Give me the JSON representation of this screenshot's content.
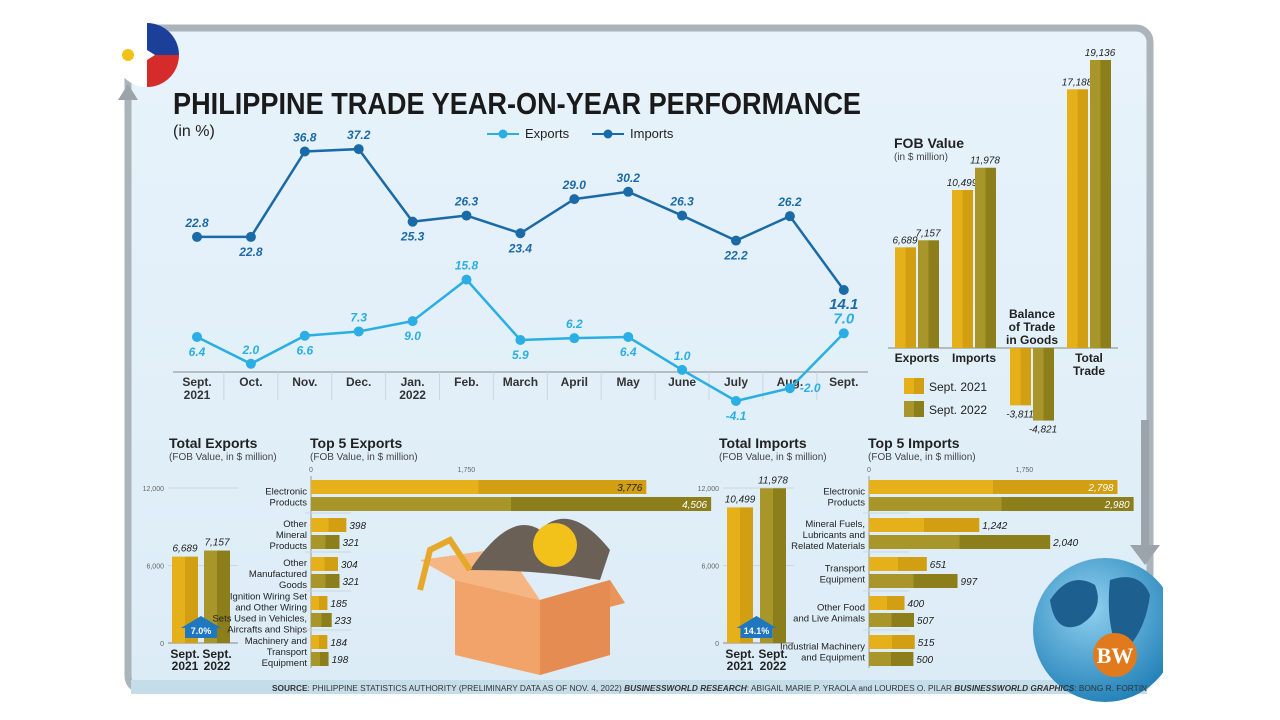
{
  "title": "PHILIPPINE TRADE YEAR-ON-YEAR PERFORMANCE",
  "colors": {
    "exports_line": "#2aaee4",
    "imports_line": "#1b6aa8",
    "sept2021": "#dca916",
    "sept2022": "#9d8c23",
    "panel": "#e4f1fa",
    "frame": "#a9b3b8"
  },
  "chart_data": [
    {
      "type": "line",
      "subtitle": "(in %)",
      "categories": [
        [
          "Sept.",
          "2021"
        ],
        [
          "Oct."
        ],
        [
          "Nov."
        ],
        [
          "Dec."
        ],
        [
          "Jan.",
          "2022"
        ],
        [
          "Feb."
        ],
        [
          "March"
        ],
        [
          "April"
        ],
        [
          "May"
        ],
        [
          "June"
        ],
        [
          "July"
        ],
        [
          "Aug."
        ],
        [
          "Sept."
        ]
      ],
      "series": [
        {
          "name": "Exports",
          "values": [
            6.4,
            2.0,
            6.6,
            7.3,
            9.0,
            15.8,
            5.9,
            6.2,
            6.4,
            1.0,
            -4.1,
            -2.0,
            7.0
          ]
        },
        {
          "name": "Imports",
          "values": [
            22.8,
            22.8,
            36.8,
            37.2,
            25.3,
            26.3,
            23.4,
            29.0,
            30.2,
            26.3,
            22.2,
            26.2,
            14.1
          ]
        }
      ],
      "legend": "top-center",
      "labels": [
        [
          "6.4",
          "2.0",
          "6.6",
          "7.3",
          "9.0",
          "15.8",
          "5.9",
          "6.2",
          "6.4",
          "1.0",
          "-4.1",
          "-2.0",
          "7.0"
        ],
        [
          "22.8",
          "22.8",
          "36.8",
          "37.2",
          "25.3",
          "26.3",
          "23.4",
          "29.0",
          "30.2",
          "26.3",
          "22.2",
          "26.2",
          "14.1"
        ]
      ]
    },
    {
      "type": "bar",
      "title": "FOB Value",
      "subtitle": "(in $ million)",
      "categories": [
        [
          "Exports"
        ],
        [
          "Imports"
        ],
        [
          "Balance",
          "of Trade",
          "in Goods"
        ],
        [
          "Total",
          "Trade"
        ]
      ],
      "series": [
        {
          "name": "Sept. 2021",
          "values": [
            6689,
            10499,
            -3811,
            17188
          ],
          "labels": [
            "6,689",
            "10,499",
            "-3,811",
            "17,188"
          ]
        },
        {
          "name": "Sept. 2022",
          "values": [
            7157,
            11978,
            -4821,
            19136
          ],
          "labels": [
            "7,157",
            "11,978",
            "-4,821",
            "19,136"
          ]
        }
      ],
      "legend": "bottom-left"
    },
    {
      "type": "bar",
      "title": "Total Exports",
      "subtitle": "(FOB Value, in $ million)",
      "categories": [
        [
          "Sept.",
          "2021"
        ],
        [
          "Sept.",
          "2022"
        ]
      ],
      "values": [
        6689,
        7157
      ],
      "labels": [
        "6,689",
        "7,157"
      ],
      "yticks": [
        "0",
        "6,000",
        "12,000"
      ],
      "ylim": [
        0,
        12000
      ],
      "growth": "7.0%"
    },
    {
      "type": "bar",
      "orientation": "horizontal",
      "title": "Top 5 Exports",
      "subtitle": "(FOB Value, in $ million)",
      "xticks": [
        "0",
        "1,750"
      ],
      "categories": [
        [
          "Electronic",
          "Products"
        ],
        [
          "Other",
          "Mineral",
          "Products"
        ],
        [
          "Other",
          "Manufactured",
          "Goods"
        ],
        [
          "Ignition Wiring Set",
          "and Other Wiring",
          "Sets Used in Vehicles,",
          "Aircrafts and Ships"
        ],
        [
          "Machinery and",
          "Transport",
          "Equipment"
        ]
      ],
      "series": [
        {
          "name": "Sept. 2021",
          "values": [
            3776,
            398,
            304,
            185,
            184
          ],
          "labels": [
            "3,776",
            "398",
            "304",
            "185",
            "184"
          ]
        },
        {
          "name": "Sept. 2022",
          "values": [
            4506,
            321,
            321,
            233,
            198
          ],
          "labels": [
            "4,506",
            "321",
            "321",
            "233",
            "198"
          ]
        }
      ]
    },
    {
      "type": "bar",
      "title": "Total Imports",
      "subtitle": "(FOB Value, in $ million)",
      "categories": [
        [
          "Sept.",
          "2021"
        ],
        [
          "Sept.",
          "2022"
        ]
      ],
      "values": [
        10499,
        11978
      ],
      "labels": [
        "10,499",
        "11,978"
      ],
      "yticks": [
        "0",
        "6,000",
        "12,000"
      ],
      "ylim": [
        0,
        12000
      ],
      "growth": "14.1%"
    },
    {
      "type": "bar",
      "orientation": "horizontal",
      "title": "Top 5 Imports",
      "subtitle": "(FOB Value, in $ million)",
      "xticks": [
        "0",
        "1,750"
      ],
      "categories": [
        [
          "Electronic",
          "Products"
        ],
        [
          "Mineral Fuels,",
          "Lubricants and",
          "Related Materials"
        ],
        [
          "Transport",
          "Equipment"
        ],
        [
          "Other Food",
          "and Live Animals"
        ],
        [
          "Industrial Machinery",
          "and Equipment"
        ]
      ],
      "series": [
        {
          "name": "Sept. 2021",
          "values": [
            2798,
            1242,
            651,
            400,
            515
          ],
          "labels": [
            "2,798",
            "1,242",
            "651",
            "400",
            "515"
          ]
        },
        {
          "name": "Sept. 2022",
          "values": [
            2980,
            2040,
            997,
            507,
            500
          ],
          "labels": [
            "2,980",
            "2,040",
            "997",
            "507",
            "500"
          ]
        }
      ]
    }
  ],
  "footer": {
    "source_label": "SOURCE",
    "source": ": PHILIPPINE STATISTICS AUTHORITY (PRELIMINARY DATA AS OF NOV. 4, 2022)",
    "research_label": "BUSINESSWORLD RESEARCH",
    "research": ": ABIGAIL MARIE P. YRAOLA and LOURDES O. PILAR",
    "graphics_label": "BUSINESSWORLD GRAPHICS",
    "graphics": ": BONG R. FORTIN"
  },
  "logo": "BW",
  "icons": [
    "philippine-flag-icon",
    "globe-icon",
    "cargo-box-icon",
    "arrow-up-icon",
    "arrow-down-icon"
  ]
}
